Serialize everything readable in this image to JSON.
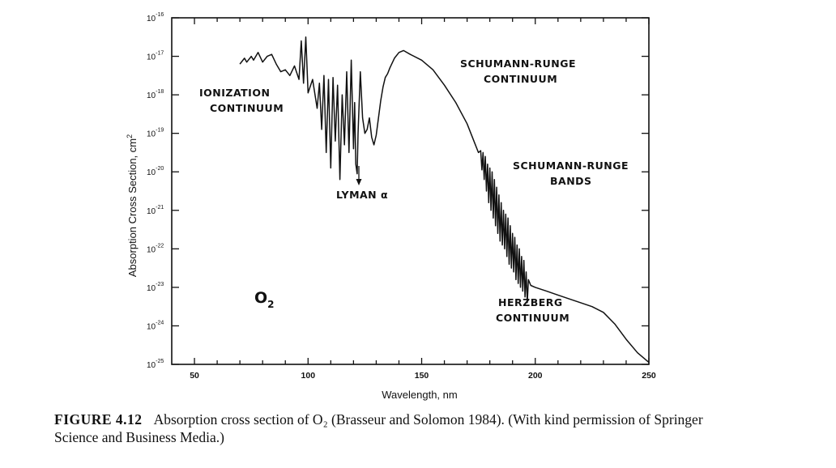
{
  "chart_data": {
    "type": "line",
    "xlabel": "Wavelength, nm",
    "ylabel": "Absorption Cross Section, cm",
    "ylabel_exp": "2",
    "xlim": [
      40,
      250
    ],
    "ylim_log10": [
      -25,
      -16
    ],
    "x_ticks": [
      "50",
      "100",
      "150",
      "200",
      "250"
    ],
    "y_ticks": [
      {
        "base": "10",
        "exp": "-16"
      },
      {
        "base": "10",
        "exp": "-17"
      },
      {
        "base": "10",
        "exp": "-18"
      },
      {
        "base": "10",
        "exp": "-19"
      },
      {
        "base": "10",
        "exp": "-20"
      },
      {
        "base": "10",
        "exp": "-21"
      },
      {
        "base": "10",
        "exp": "-22"
      },
      {
        "base": "10",
        "exp": "-23"
      },
      {
        "base": "10",
        "exp": "-24"
      },
      {
        "base": "10",
        "exp": "-25"
      }
    ],
    "series": [
      {
        "name": "O2 absorption cross section (log10 cm2)",
        "x": [
          70,
          72,
          73,
          75,
          76,
          78,
          80,
          82,
          84,
          86,
          88,
          90,
          92,
          94,
          96,
          97,
          98,
          99,
          100,
          102,
          104,
          105,
          106,
          107,
          108,
          109,
          110,
          111,
          112,
          113,
          114,
          115,
          116,
          117,
          118,
          119,
          120,
          120.5,
          121,
          121.6,
          122,
          123,
          124,
          125,
          126,
          127,
          128,
          129,
          130,
          131,
          132,
          133,
          134,
          135,
          136,
          138,
          140,
          142,
          145,
          150,
          155,
          160,
          165,
          170,
          173,
          175,
          176,
          176.5,
          177,
          177.5,
          178,
          178.5,
          179,
          179.5,
          180,
          180.5,
          181,
          181.5,
          182,
          182.5,
          183,
          183.5,
          184,
          184.5,
          185,
          185.5,
          186,
          186.5,
          187,
          187.5,
          188,
          188.5,
          189,
          189.5,
          190,
          190.5,
          191,
          191.5,
          192,
          192.5,
          193,
          193.5,
          194,
          194.5,
          195,
          195.5,
          196,
          196.5,
          197,
          198,
          200,
          205,
          210,
          215,
          220,
          225,
          230,
          235,
          240,
          245,
          250
        ],
        "y": [
          -17.2,
          -17.05,
          -17.15,
          -17.0,
          -17.1,
          -16.9,
          -17.15,
          -17.0,
          -16.95,
          -17.2,
          -17.4,
          -17.35,
          -17.5,
          -17.25,
          -17.6,
          -16.6,
          -17.7,
          -16.5,
          -17.95,
          -17.6,
          -18.35,
          -17.7,
          -18.9,
          -17.5,
          -19.5,
          -17.6,
          -19.9,
          -17.55,
          -19.2,
          -17.75,
          -20.2,
          -18.0,
          -19.3,
          -17.4,
          -19.5,
          -17.1,
          -19.4,
          -18.2,
          -19.8,
          -20.05,
          -19.0,
          -17.4,
          -18.6,
          -19.0,
          -18.9,
          -18.6,
          -19.1,
          -19.3,
          -19.05,
          -18.6,
          -18.15,
          -17.8,
          -17.55,
          -17.45,
          -17.3,
          -17.05,
          -16.9,
          -16.85,
          -16.95,
          -17.1,
          -17.35,
          -17.75,
          -18.2,
          -18.75,
          -19.2,
          -19.5,
          -19.45,
          -19.95,
          -19.5,
          -20.2,
          -19.6,
          -20.5,
          -19.8,
          -20.8,
          -19.9,
          -21.0,
          -20.0,
          -21.2,
          -20.2,
          -21.4,
          -20.4,
          -21.6,
          -20.6,
          -21.8,
          -20.8,
          -21.9,
          -21.0,
          -22.0,
          -21.1,
          -22.2,
          -21.2,
          -22.4,
          -21.4,
          -22.5,
          -21.6,
          -22.6,
          -21.7,
          -22.8,
          -21.9,
          -22.9,
          -22.0,
          -23.0,
          -22.2,
          -23.1,
          -22.3,
          -23.25,
          -22.6,
          -23.4,
          -22.8,
          -22.95,
          -23.0,
          -23.1,
          -23.2,
          -23.3,
          -23.4,
          -23.5,
          -23.65,
          -23.95,
          -24.35,
          -24.7,
          -24.95
        ]
      }
    ],
    "annotations": {
      "ionization_1": "IONIZATION",
      "ionization_2": "CONTINUUM",
      "lyman": "LYMAN α",
      "src_1": "SCHUMANN-RUNGE",
      "src_2": "CONTINUUM",
      "srb_1": "SCHUMANN-RUNGE",
      "srb_2": "BANDS",
      "herz_1": "HERZBERG",
      "herz_2": "CONTINUUM",
      "species": "O",
      "species_sub": "2"
    }
  },
  "caption": {
    "label": "FIGURE 4.12",
    "text": "Absorption cross section of O₂ (Brasseur and Solomon 1984). (With kind permission of Springer Science and Business Media.)"
  },
  "colors": {
    "ink": "#111111",
    "background": "#ffffff"
  }
}
